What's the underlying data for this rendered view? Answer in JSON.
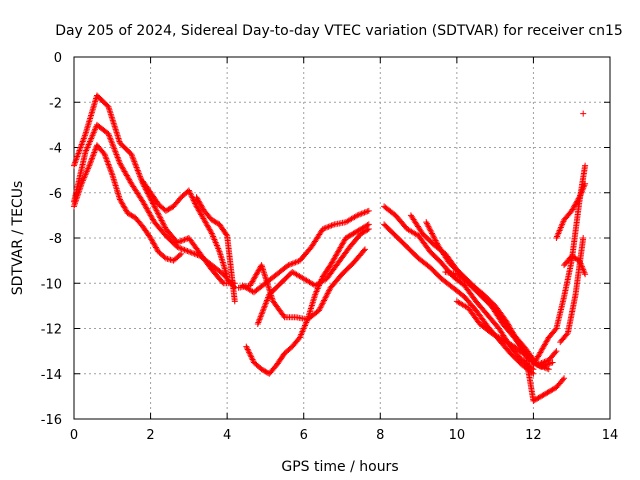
{
  "chart_data": {
    "type": "scatter",
    "title": "Day 205 of 2024, Sidereal Day-to-day VTEC variation (SDTVAR) for receiver cn15",
    "xlabel": "GPS time / hours",
    "ylabel": "SDTVAR / TECUs",
    "xlim": [
      0,
      14
    ],
    "ylim": [
      -16,
      0
    ],
    "xticks": [
      0,
      2,
      4,
      6,
      8,
      10,
      12,
      14
    ],
    "yticks": [
      0,
      -2,
      -4,
      -6,
      -8,
      -10,
      -12,
      -14,
      -16
    ],
    "grid": true,
    "marker": "+",
    "color": "#ff0000",
    "series": [
      {
        "name": "track-1",
        "x": [
          0.0,
          0.3,
          0.6,
          0.9,
          1.2,
          1.5,
          1.8,
          2.1,
          2.4,
          2.7,
          3.0,
          3.3,
          3.6,
          3.9,
          4.2
        ],
        "y": [
          -4.8,
          -3.4,
          -1.7,
          -2.2,
          -3.8,
          -4.3,
          -5.6,
          -6.6,
          -7.6,
          -8.2,
          -8.0,
          -8.7,
          -9.4,
          -10.0,
          -10.0
        ]
      },
      {
        "name": "track-2",
        "x": [
          0.0,
          0.3,
          0.6,
          0.9,
          1.2,
          1.5,
          1.8,
          2.1,
          2.4,
          2.7,
          3.0,
          3.3,
          3.6,
          3.9,
          4.2
        ],
        "y": [
          -6.4,
          -4.2,
          -3.0,
          -3.4,
          -4.7,
          -5.6,
          -6.4,
          -7.3,
          -7.9,
          -8.4,
          -8.6,
          -8.8,
          -9.2,
          -9.6,
          -10.2
        ]
      },
      {
        "name": "track-3",
        "x": [
          0.0,
          0.2,
          0.4,
          0.6,
          0.8,
          1.0,
          1.2,
          1.4,
          1.6,
          1.8,
          2.0,
          2.2,
          2.4,
          2.6,
          2.8
        ],
        "y": [
          -6.6,
          -5.6,
          -4.8,
          -3.9,
          -4.3,
          -5.2,
          -6.3,
          -6.9,
          -7.1,
          -7.5,
          -8.0,
          -8.6,
          -8.9,
          -9.0,
          -8.7
        ]
      },
      {
        "name": "track-4",
        "x": [
          1.8,
          2.0,
          2.2,
          2.4,
          2.6,
          2.8,
          3.0,
          3.2,
          3.4,
          3.6,
          3.8,
          4.0
        ],
        "y": [
          -5.5,
          -6.0,
          -6.5,
          -6.8,
          -6.6,
          -6.2,
          -5.9,
          -6.6,
          -7.2,
          -7.8,
          -8.6,
          -9.7
        ]
      },
      {
        "name": "track-5",
        "x": [
          3.2,
          3.4,
          3.6,
          3.8,
          4.0,
          4.2
        ],
        "y": [
          -6.2,
          -6.8,
          -7.2,
          -7.4,
          -7.9,
          -10.8
        ]
      },
      {
        "name": "track-6",
        "x": [
          4.5,
          4.7,
          4.9,
          5.1,
          5.3,
          5.5,
          5.7,
          5.9,
          6.1,
          6.3,
          6.5,
          6.7,
          6.9,
          7.1,
          7.3,
          7.5,
          7.7
        ],
        "y": [
          -12.8,
          -13.5,
          -13.8,
          -14.0,
          -13.6,
          -13.1,
          -12.8,
          -12.4,
          -11.6,
          -10.5,
          -9.7,
          -9.2,
          -8.6,
          -8.0,
          -7.8,
          -7.6,
          -7.4
        ]
      },
      {
        "name": "track-7",
        "x": [
          4.3,
          4.6,
          4.9,
          5.2,
          5.5,
          5.8,
          6.1,
          6.4,
          6.7,
          7.0,
          7.3,
          7.6
        ],
        "y": [
          -10.2,
          -10.1,
          -9.2,
          -10.8,
          -11.5,
          -11.5,
          -11.6,
          -11.2,
          -10.2,
          -9.6,
          -9.1,
          -8.5
        ]
      },
      {
        "name": "track-8",
        "x": [
          4.8,
          5.1,
          5.4,
          5.7,
          6.0,
          6.3,
          6.6,
          6.9,
          7.2,
          7.5,
          7.7
        ],
        "y": [
          -11.8,
          -10.5,
          -10.0,
          -9.5,
          -9.8,
          -10.1,
          -9.8,
          -9.1,
          -8.4,
          -7.8,
          -7.6
        ]
      },
      {
        "name": "track-9",
        "x": [
          4.4,
          4.7,
          5.0,
          5.3,
          5.6,
          5.9,
          6.2,
          6.5,
          6.8,
          7.1,
          7.4,
          7.7
        ],
        "y": [
          -10.1,
          -10.4,
          -10.0,
          -9.6,
          -9.2,
          -9.0,
          -8.4,
          -7.6,
          -7.4,
          -7.3,
          -7.0,
          -6.8
        ]
      },
      {
        "name": "track-10",
        "x": [
          8.1,
          8.4,
          8.7,
          9.0,
          9.3,
          9.6,
          9.9,
          10.2,
          10.5,
          10.8,
          11.1,
          11.4,
          11.7,
          12.0
        ],
        "y": [
          -6.6,
          -7.0,
          -7.6,
          -7.9,
          -8.6,
          -9.1,
          -9.7,
          -10.1,
          -10.8,
          -11.4,
          -12.0,
          -12.8,
          -13.4,
          -13.8
        ]
      },
      {
        "name": "track-11",
        "x": [
          8.1,
          8.4,
          8.7,
          9.0,
          9.3,
          9.6,
          9.9,
          10.2,
          10.5,
          10.8,
          11.1,
          11.4,
          11.7,
          12.0
        ],
        "y": [
          -7.4,
          -7.9,
          -8.4,
          -8.9,
          -9.3,
          -9.8,
          -10.2,
          -10.6,
          -11.2,
          -11.9,
          -12.5,
          -13.1,
          -13.6,
          -14.0
        ]
      },
      {
        "name": "track-12",
        "x": [
          8.8,
          9.1,
          9.4,
          9.7,
          10.0,
          10.3,
          10.6,
          10.9,
          11.2,
          11.5,
          11.8,
          12.1,
          12.4
        ],
        "y": [
          -7.0,
          -7.8,
          -8.3,
          -8.7,
          -9.4,
          -9.9,
          -10.4,
          -11.0,
          -11.6,
          -12.3,
          -12.9,
          -13.6,
          -13.8
        ]
      },
      {
        "name": "track-13",
        "x": [
          9.2,
          9.5,
          9.8,
          10.1,
          10.4,
          10.7,
          11.0,
          11.3,
          11.6,
          11.9,
          12.2,
          12.5
        ],
        "y": [
          -7.3,
          -8.3,
          -9.1,
          -9.6,
          -10.1,
          -10.5,
          -11.0,
          -11.7,
          -12.6,
          -13.4,
          -13.7,
          -13.5
        ]
      },
      {
        "name": "track-14",
        "x": [
          9.7,
          10.0,
          10.3,
          10.6,
          10.9,
          11.2,
          11.5,
          11.8,
          12.1,
          12.4,
          12.6
        ],
        "y": [
          -9.5,
          -9.6,
          -10.0,
          -10.5,
          -11.0,
          -11.8,
          -12.4,
          -13.1,
          -13.6,
          -13.4,
          -13.0
        ]
      },
      {
        "name": "track-15",
        "x": [
          10.0,
          10.3,
          10.6,
          10.9,
          11.2,
          11.5,
          11.8,
          12.0,
          12.2,
          12.4,
          12.6,
          12.8
        ],
        "y": [
          -10.8,
          -11.1,
          -11.8,
          -12.2,
          -12.5,
          -12.8,
          -13.2,
          -15.2,
          -15.0,
          -14.8,
          -14.6,
          -14.2
        ]
      },
      {
        "name": "track-16",
        "x": [
          12.0,
          12.2,
          12.4,
          12.6,
          12.8,
          13.0,
          13.2,
          13.35
        ],
        "y": [
          -13.6,
          -13.0,
          -12.4,
          -12.0,
          -10.6,
          -9.0,
          -6.4,
          -4.8
        ]
      },
      {
        "name": "track-17",
        "x": [
          12.7,
          12.9,
          13.1,
          13.3
        ],
        "y": [
          -12.6,
          -12.2,
          -10.5,
          -8.0
        ]
      },
      {
        "name": "track-18",
        "x": [
          12.6,
          12.8,
          13.0,
          13.2,
          13.35
        ],
        "y": [
          -8.0,
          -7.2,
          -6.8,
          -6.2,
          -5.6
        ]
      },
      {
        "name": "track-19",
        "x": [
          12.8,
          13.0,
          13.2,
          13.35
        ],
        "y": [
          -9.2,
          -8.8,
          -9.0,
          -9.6
        ]
      },
      {
        "name": "outlier",
        "x": [
          13.3
        ],
        "y": [
          -2.5
        ]
      }
    ]
  }
}
